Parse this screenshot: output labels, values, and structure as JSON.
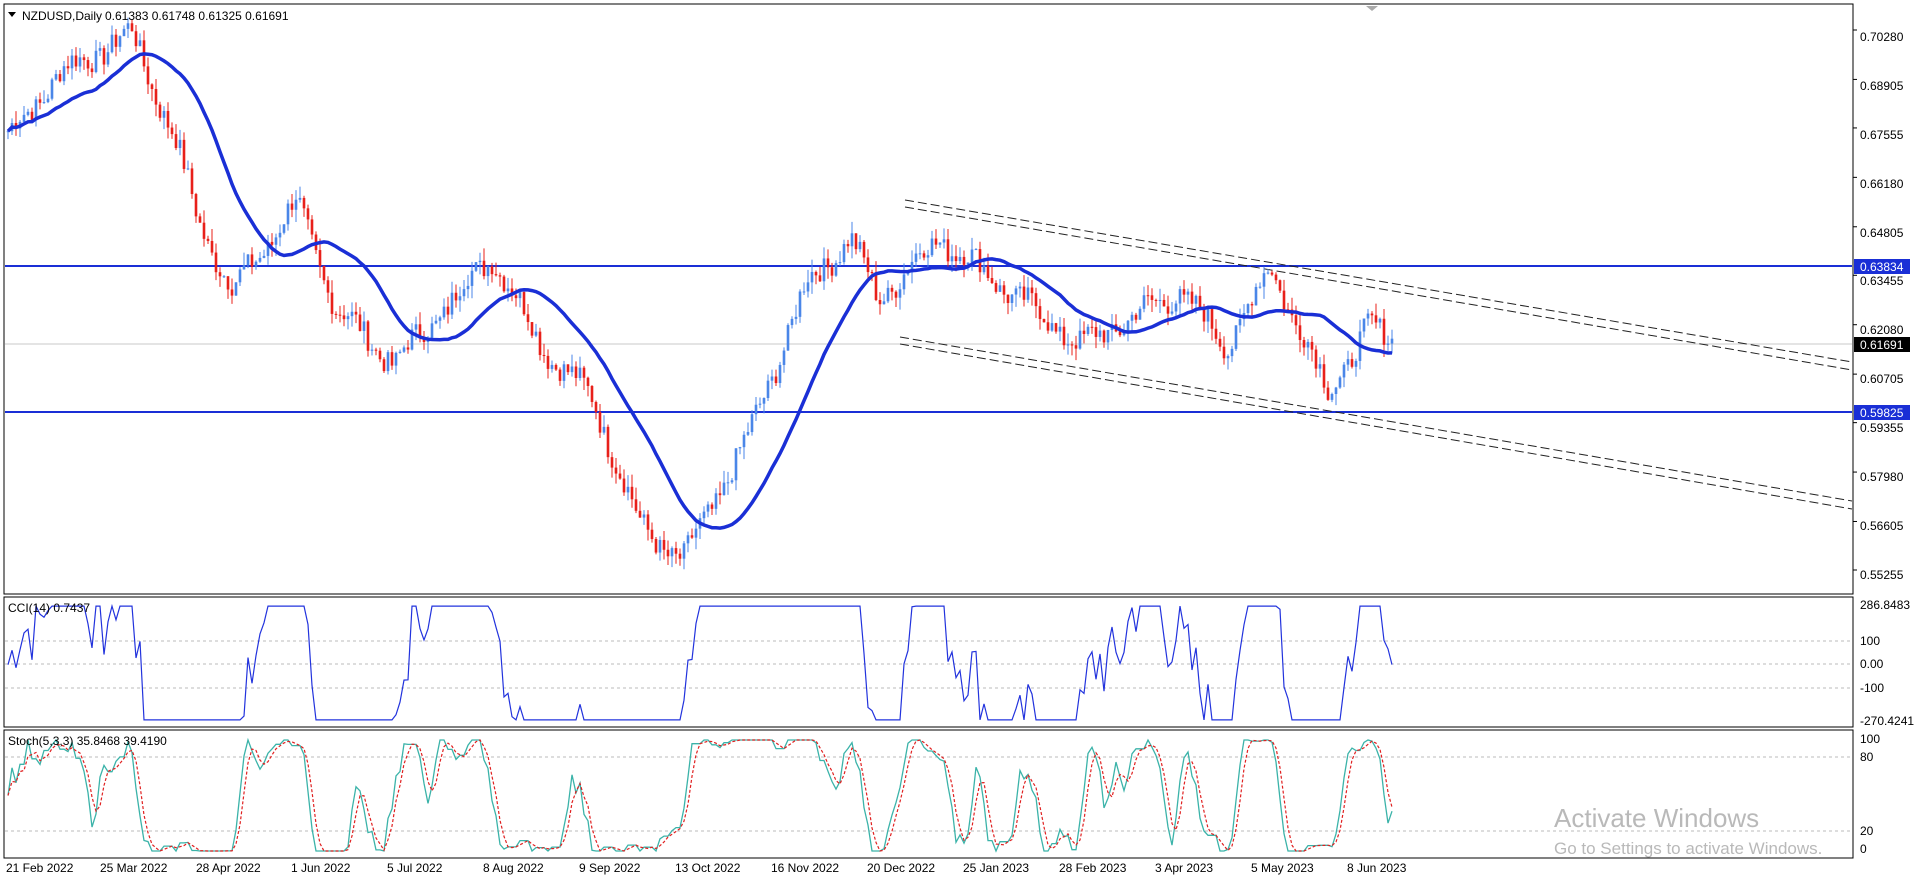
{
  "header": {
    "symbol": "NZDUSD,Daily",
    "ohlc": "0.61383 0.61748 0.61325 0.61691",
    "menu_icon": "triangle-down-icon"
  },
  "price_axis": {
    "ticks": [
      "0.70280",
      "0.68905",
      "0.67555",
      "0.66180",
      "0.64805",
      "0.63455",
      "0.62080",
      "0.60705",
      "0.59355",
      "0.57980",
      "0.56605",
      "0.55255"
    ],
    "current_price_tag": "0.61691",
    "level_upper_tag": "0.63834",
    "level_lower_tag": "0.59825"
  },
  "time_axis": {
    "labels": [
      "21 Feb 2022",
      "25 Mar 2022",
      "28 Apr 2022",
      "1 Jun 2022",
      "5 Jul 2022",
      "8 Aug 2022",
      "9 Sep 2022",
      "13 Oct 2022",
      "16 Nov 2022",
      "20 Dec 2022",
      "25 Jan 2023",
      "28 Feb 2023",
      "3 Apr 2023",
      "5 May 2023",
      "8 Jun 2023"
    ]
  },
  "cci_panel": {
    "label": "CCI(14) 0.7437",
    "ticks": [
      "286.8483",
      "100",
      "0.00",
      "-100",
      "-270.4241"
    ]
  },
  "stoch_panel": {
    "label": "Stoch(5,3,3) 35.8468 39.4190",
    "ticks": [
      "100",
      "80",
      "20",
      "0"
    ]
  },
  "watermark": {
    "title": "Activate Windows",
    "subtitle": "Go to Settings to activate Windows."
  },
  "colors": {
    "bull": "#4a86e8",
    "bear": "#e8201a",
    "ma": "#1a2fd6",
    "level": "#1a2fd6",
    "cci": "#2233dd",
    "stoch_main": "#3bb3a9",
    "stoch_signal": "#e02020"
  },
  "chart_data": {
    "type": "candlestick",
    "symbol": "NZDUSD",
    "timeframe": "Daily",
    "last_bar": {
      "open": 0.61383,
      "high": 0.61748,
      "low": 0.61325,
      "close": 0.61691
    },
    "horizontal_levels": [
      0.63834,
      0.59825
    ],
    "y_range": [
      0.5495,
      0.7065
    ],
    "price_path": [
      {
        "date": "21 Feb 2022",
        "price": 0.673
      },
      {
        "date": "10 Mar 2022",
        "price": 0.69
      },
      {
        "date": "5 Apr 2022",
        "price": 0.702
      },
      {
        "date": "20 Apr 2022",
        "price": 0.672
      },
      {
        "date": "28 Apr 2022",
        "price": 0.65
      },
      {
        "date": "10 May 2022",
        "price": 0.63
      },
      {
        "date": "1 Jun 2022",
        "price": 0.655
      },
      {
        "date": "15 Jun 2022",
        "price": 0.625
      },
      {
        "date": "5 Jul 2022",
        "price": 0.61
      },
      {
        "date": "8 Aug 2022",
        "price": 0.64
      },
      {
        "date": "25 Aug 2022",
        "price": 0.615
      },
      {
        "date": "12 Sep 2022",
        "price": 0.6
      },
      {
        "date": "28 Sep 2022",
        "price": 0.565
      },
      {
        "date": "13 Oct 2022",
        "price": 0.555
      },
      {
        "date": "5 Nov 2022",
        "price": 0.59
      },
      {
        "date": "25 Nov 2022",
        "price": 0.632
      },
      {
        "date": "10 Dec 2022",
        "price": 0.645
      },
      {
        "date": "20 Dec 2022",
        "price": 0.628
      },
      {
        "date": "10 Jan 2023",
        "price": 0.645
      },
      {
        "date": "25 Jan 2023",
        "price": 0.636
      },
      {
        "date": "28 Feb 2023",
        "price": 0.615
      },
      {
        "date": "3 Apr 2023",
        "price": 0.63
      },
      {
        "date": "20 Apr 2023",
        "price": 0.615
      },
      {
        "date": "5 May 2023",
        "price": 0.637
      },
      {
        "date": "25 May 2023",
        "price": 0.602
      },
      {
        "date": "8 Jun 2023",
        "price": 0.62
      },
      {
        "date": "16 Jun 2023",
        "price": 0.6169
      }
    ],
    "indicators": [
      {
        "name": "CCI(14)",
        "last": 0.7437,
        "overbought": 100,
        "oversold": -100,
        "range": [
          -270.4241,
          286.8483
        ]
      },
      {
        "name": "Stoch(5,3,3)",
        "main": 35.8468,
        "signal": 39.419,
        "levels": [
          20,
          80
        ],
        "range": [
          0,
          100
        ]
      }
    ]
  }
}
